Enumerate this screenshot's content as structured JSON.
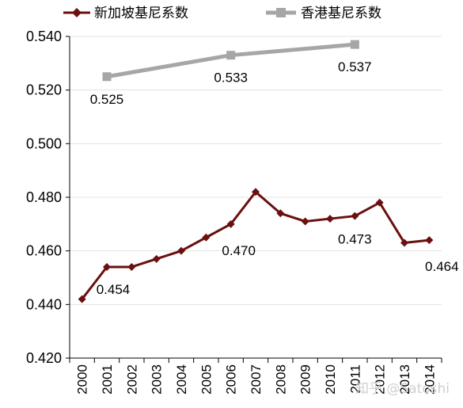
{
  "chart_data": {
    "type": "line",
    "title": "",
    "xlabel": "",
    "ylabel": "",
    "ylim": [
      0.42,
      0.54
    ],
    "yticks": [
      "0.420",
      "0.440",
      "0.460",
      "0.480",
      "0.500",
      "0.520",
      "0.540"
    ],
    "categories": [
      "2000",
      "2001",
      "2002",
      "2003",
      "2004",
      "2005",
      "2006",
      "2007",
      "2008",
      "2009",
      "2010",
      "2011",
      "2012",
      "2013",
      "2014"
    ],
    "grid": true,
    "legend_position": "top",
    "series": [
      {
        "name": "新加坡基尼系数",
        "color": "#6b0f0f",
        "marker": "diamond",
        "x": [
          "2000",
          "2001",
          "2002",
          "2003",
          "2004",
          "2005",
          "2006",
          "2007",
          "2008",
          "2009",
          "2010",
          "2011",
          "2012",
          "2013",
          "2014"
        ],
        "values": [
          0.442,
          0.454,
          0.454,
          0.457,
          0.46,
          0.465,
          0.47,
          0.482,
          0.474,
          0.471,
          0.472,
          0.473,
          0.478,
          0.463,
          0.464
        ]
      },
      {
        "name": "香港基尼系数",
        "color": "#a6a6a6",
        "marker": "square",
        "x": [
          "2001",
          "2006",
          "2011"
        ],
        "values": [
          0.525,
          0.533,
          0.537
        ]
      }
    ],
    "annotations": [
      {
        "series": 1,
        "x": "2001",
        "text": "0.525"
      },
      {
        "series": 1,
        "x": "2006",
        "text": "0.533"
      },
      {
        "series": 1,
        "x": "2011",
        "text": "0.537"
      },
      {
        "series": 0,
        "x": "2001",
        "text": "0.454"
      },
      {
        "series": 0,
        "x": "2006",
        "text": "0.470"
      },
      {
        "series": 0,
        "x": "2011",
        "text": "0.473"
      },
      {
        "series": 0,
        "x": "2014",
        "text": "0.464"
      }
    ]
  },
  "watermark": "知乎 @Satoshi"
}
